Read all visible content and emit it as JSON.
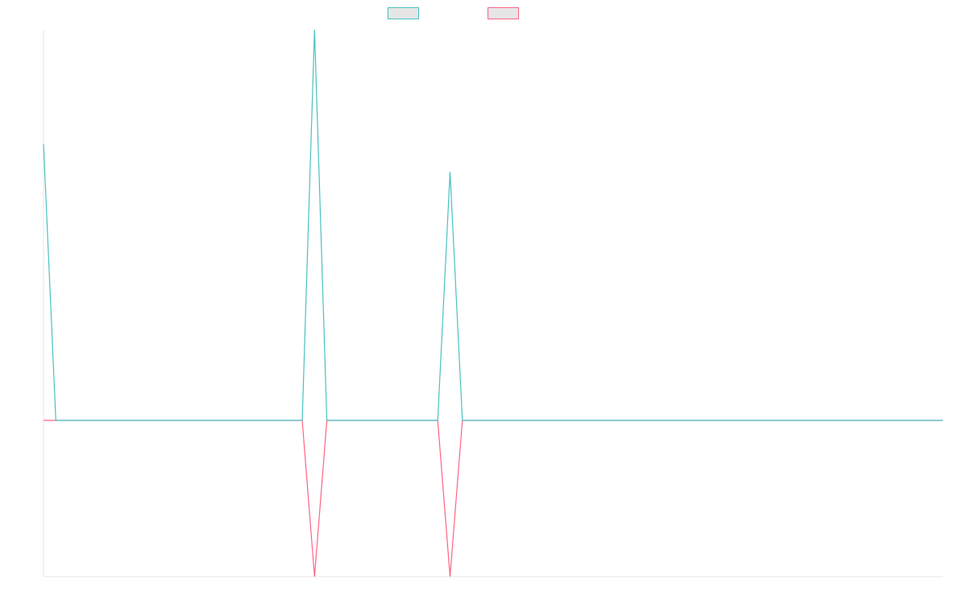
{
  "chart_data": {
    "type": "line",
    "title": "",
    "xlabel": "",
    "ylabel": "",
    "xlim": [
      0,
      73
    ],
    "ylim": [
      -1.0,
      2.5
    ],
    "grid": false,
    "legend_position": "top-center",
    "x": [
      0,
      1,
      2,
      3,
      4,
      5,
      6,
      7,
      8,
      9,
      10,
      11,
      12,
      13,
      14,
      15,
      16,
      17,
      18,
      19,
      20,
      21,
      22,
      23,
      24,
      25,
      26,
      27,
      28,
      29,
      30,
      31,
      32,
      33,
      34,
      35,
      36,
      37,
      38,
      39,
      40,
      41,
      42,
      43,
      44,
      45,
      46,
      47,
      48,
      49,
      50,
      51,
      52,
      53,
      54,
      55,
      56,
      57,
      58,
      59,
      60,
      61,
      62,
      63,
      64,
      65,
      66,
      67,
      68,
      69,
      70,
      71,
      72,
      73
    ],
    "series": [
      {
        "name": "",
        "color": "#4bc0c0",
        "values": [
          1.77,
          0,
          0,
          0,
          0,
          0,
          0,
          0,
          0,
          0,
          0,
          0,
          0,
          0,
          0,
          0,
          0,
          0,
          0,
          0,
          0,
          0,
          2.5,
          0,
          0,
          0,
          0,
          0,
          0,
          0,
          0,
          0,
          0,
          1.59,
          0,
          0,
          0,
          0,
          0,
          0,
          0,
          0,
          0,
          0,
          0,
          0,
          0,
          0,
          0,
          0,
          0,
          0,
          0,
          0,
          0,
          0,
          0,
          0,
          0,
          0,
          0,
          0,
          0,
          0,
          0,
          0,
          0,
          0,
          0,
          0,
          0,
          0,
          0,
          0
        ]
      },
      {
        "name": "",
        "color": "#ff6384",
        "values": [
          0,
          0,
          0,
          0,
          0,
          0,
          0,
          0,
          0,
          0,
          0,
          0,
          0,
          0,
          0,
          0,
          0,
          0,
          0,
          0,
          0,
          0,
          -1.0,
          0,
          0,
          0,
          0,
          0,
          0,
          0,
          0,
          0,
          0,
          -1.0,
          0,
          0,
          0,
          0,
          0,
          0,
          0,
          0,
          0,
          0,
          0,
          0,
          0,
          0,
          0,
          0,
          0,
          0,
          0,
          0,
          0,
          0,
          0,
          0,
          0,
          0,
          0,
          0,
          0,
          0,
          0,
          0,
          0,
          0,
          0,
          0,
          0,
          0,
          0,
          0
        ]
      }
    ]
  }
}
